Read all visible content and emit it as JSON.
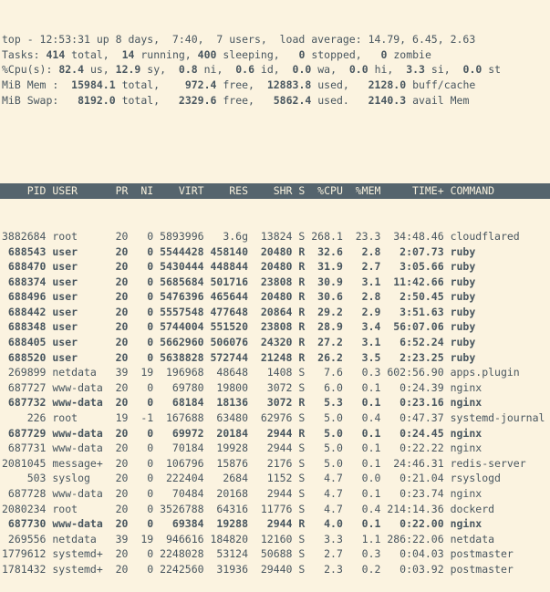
{
  "colors": {
    "background": "#fbf3e0",
    "foreground": "#48565f",
    "header_bar_bg": "#55646d",
    "header_bar_fg": "#f8f1dd"
  },
  "summary": {
    "lines": [
      {
        "name": "uptime-line",
        "segments": [
          {
            "t": "top - 12:53:31 up 8 days,  7:40,  7 users,  load average: 14.79, 6.45, 2.63",
            "b": false
          }
        ]
      },
      {
        "name": "tasks-line",
        "segments": [
          {
            "t": "Tasks: ",
            "b": false
          },
          {
            "t": "414",
            "b": true
          },
          {
            "t": " total,  ",
            "b": false
          },
          {
            "t": "14",
            "b": true
          },
          {
            "t": " running, ",
            "b": false
          },
          {
            "t": "400",
            "b": true
          },
          {
            "t": " sleeping,   ",
            "b": false
          },
          {
            "t": "0",
            "b": true
          },
          {
            "t": " stopped,   ",
            "b": false
          },
          {
            "t": "0",
            "b": true
          },
          {
            "t": " zombie",
            "b": false
          }
        ]
      },
      {
        "name": "cpu-line",
        "segments": [
          {
            "t": "%Cpu(s): ",
            "b": false
          },
          {
            "t": "82.4",
            "b": true
          },
          {
            "t": " us, ",
            "b": false
          },
          {
            "t": "12.9",
            "b": true
          },
          {
            "t": " sy,  ",
            "b": false
          },
          {
            "t": "0.8",
            "b": true
          },
          {
            "t": " ni,  ",
            "b": false
          },
          {
            "t": "0.6",
            "b": true
          },
          {
            "t": " id,  ",
            "b": false
          },
          {
            "t": "0.0",
            "b": true
          },
          {
            "t": " wa,  ",
            "b": false
          },
          {
            "t": "0.0",
            "b": true
          },
          {
            "t": " hi,  ",
            "b": false
          },
          {
            "t": "3.3",
            "b": true
          },
          {
            "t": " si,  ",
            "b": false
          },
          {
            "t": "0.0",
            "b": true
          },
          {
            "t": " st",
            "b": false
          }
        ]
      },
      {
        "name": "mem-line",
        "segments": [
          {
            "t": "MiB Mem :  ",
            "b": false
          },
          {
            "t": "15984.1",
            "b": true
          },
          {
            "t": " total,    ",
            "b": false
          },
          {
            "t": "972.4",
            "b": true
          },
          {
            "t": " free,  ",
            "b": false
          },
          {
            "t": "12883.8",
            "b": true
          },
          {
            "t": " used,   ",
            "b": false
          },
          {
            "t": "2128.0",
            "b": true
          },
          {
            "t": " buff/cache",
            "b": false
          }
        ]
      },
      {
        "name": "swap-line",
        "segments": [
          {
            "t": "MiB Swap:   ",
            "b": false
          },
          {
            "t": "8192.0",
            "b": true
          },
          {
            "t": " total,   ",
            "b": false
          },
          {
            "t": "2329.6",
            "b": true
          },
          {
            "t": " free,   ",
            "b": false
          },
          {
            "t": "5862.4",
            "b": true
          },
          {
            "t": " used.   ",
            "b": false
          },
          {
            "t": "2140.3",
            "b": true
          },
          {
            "t": " avail Mem",
            "b": false
          }
        ]
      }
    ]
  },
  "table": {
    "header_line": "    PID USER      PR  NI    VIRT    RES    SHR S  %CPU  %MEM     TIME+ COMMAND",
    "columns": [
      "PID",
      "USER",
      "PR",
      "NI",
      "VIRT",
      "RES",
      "SHR",
      "S",
      "%CPU",
      "%MEM",
      "TIME+",
      "COMMAND"
    ],
    "rows": [
      {
        "pid": "3882684",
        "user": "root",
        "pr": "20",
        "ni": "0",
        "virt": "5893996",
        "res": "3.6g",
        "shr": "13824",
        "s": "S",
        "cpu": "268.1",
        "mem": "23.3",
        "time": "34:48.46",
        "command": "cloudflared",
        "bold": false
      },
      {
        "pid": "688543",
        "user": "user",
        "pr": "20",
        "ni": "0",
        "virt": "5544428",
        "res": "458140",
        "shr": "20480",
        "s": "R",
        "cpu": "32.6",
        "mem": "2.8",
        "time": "2:07.73",
        "command": "ruby",
        "bold": true
      },
      {
        "pid": "688470",
        "user": "user",
        "pr": "20",
        "ni": "0",
        "virt": "5430444",
        "res": "448844",
        "shr": "20480",
        "s": "R",
        "cpu": "31.9",
        "mem": "2.7",
        "time": "3:05.66",
        "command": "ruby",
        "bold": true
      },
      {
        "pid": "688374",
        "user": "user",
        "pr": "20",
        "ni": "0",
        "virt": "5685684",
        "res": "501716",
        "shr": "23808",
        "s": "R",
        "cpu": "30.9",
        "mem": "3.1",
        "time": "11:42.66",
        "command": "ruby",
        "bold": true
      },
      {
        "pid": "688496",
        "user": "user",
        "pr": "20",
        "ni": "0",
        "virt": "5476396",
        "res": "465644",
        "shr": "20480",
        "s": "R",
        "cpu": "30.6",
        "mem": "2.8",
        "time": "2:50.45",
        "command": "ruby",
        "bold": true
      },
      {
        "pid": "688442",
        "user": "user",
        "pr": "20",
        "ni": "0",
        "virt": "5557548",
        "res": "477648",
        "shr": "20864",
        "s": "R",
        "cpu": "29.2",
        "mem": "2.9",
        "time": "3:51.63",
        "command": "ruby",
        "bold": true
      },
      {
        "pid": "688348",
        "user": "user",
        "pr": "20",
        "ni": "0",
        "virt": "5744004",
        "res": "551520",
        "shr": "23808",
        "s": "R",
        "cpu": "28.9",
        "mem": "3.4",
        "time": "56:07.06",
        "command": "ruby",
        "bold": true
      },
      {
        "pid": "688405",
        "user": "user",
        "pr": "20",
        "ni": "0",
        "virt": "5662960",
        "res": "506076",
        "shr": "24320",
        "s": "R",
        "cpu": "27.2",
        "mem": "3.1",
        "time": "6:52.24",
        "command": "ruby",
        "bold": true
      },
      {
        "pid": "688520",
        "user": "user",
        "pr": "20",
        "ni": "0",
        "virt": "5638828",
        "res": "572744",
        "shr": "21248",
        "s": "R",
        "cpu": "26.2",
        "mem": "3.5",
        "time": "2:23.25",
        "command": "ruby",
        "bold": true
      },
      {
        "pid": "269899",
        "user": "netdata",
        "pr": "39",
        "ni": "19",
        "virt": "196968",
        "res": "48648",
        "shr": "1408",
        "s": "S",
        "cpu": "7.6",
        "mem": "0.3",
        "time": "602:56.90",
        "command": "apps.plugin",
        "bold": false
      },
      {
        "pid": "687727",
        "user": "www-data",
        "pr": "20",
        "ni": "0",
        "virt": "69780",
        "res": "19800",
        "shr": "3072",
        "s": "S",
        "cpu": "6.0",
        "mem": "0.1",
        "time": "0:24.39",
        "command": "nginx",
        "bold": false
      },
      {
        "pid": "687732",
        "user": "www-data",
        "pr": "20",
        "ni": "0",
        "virt": "68184",
        "res": "18136",
        "shr": "3072",
        "s": "R",
        "cpu": "5.3",
        "mem": "0.1",
        "time": "0:23.16",
        "command": "nginx",
        "bold": true
      },
      {
        "pid": "226",
        "user": "root",
        "pr": "19",
        "ni": "-1",
        "virt": "167688",
        "res": "63480",
        "shr": "62976",
        "s": "S",
        "cpu": "5.0",
        "mem": "0.4",
        "time": "0:47.37",
        "command": "systemd-journal",
        "bold": false
      },
      {
        "pid": "687729",
        "user": "www-data",
        "pr": "20",
        "ni": "0",
        "virt": "69972",
        "res": "20184",
        "shr": "2944",
        "s": "R",
        "cpu": "5.0",
        "mem": "0.1",
        "time": "0:24.45",
        "command": "nginx",
        "bold": true
      },
      {
        "pid": "687731",
        "user": "www-data",
        "pr": "20",
        "ni": "0",
        "virt": "70184",
        "res": "19928",
        "shr": "2944",
        "s": "S",
        "cpu": "5.0",
        "mem": "0.1",
        "time": "0:22.22",
        "command": "nginx",
        "bold": false
      },
      {
        "pid": "2081045",
        "user": "message+",
        "pr": "20",
        "ni": "0",
        "virt": "106796",
        "res": "15876",
        "shr": "2176",
        "s": "S",
        "cpu": "5.0",
        "mem": "0.1",
        "time": "24:46.31",
        "command": "redis-server",
        "bold": false
      },
      {
        "pid": "503",
        "user": "syslog",
        "pr": "20",
        "ni": "0",
        "virt": "222404",
        "res": "2684",
        "shr": "1152",
        "s": "S",
        "cpu": "4.7",
        "mem": "0.0",
        "time": "0:21.04",
        "command": "rsyslogd",
        "bold": false
      },
      {
        "pid": "687728",
        "user": "www-data",
        "pr": "20",
        "ni": "0",
        "virt": "70484",
        "res": "20168",
        "shr": "2944",
        "s": "S",
        "cpu": "4.7",
        "mem": "0.1",
        "time": "0:23.74",
        "command": "nginx",
        "bold": false
      },
      {
        "pid": "2080234",
        "user": "root",
        "pr": "20",
        "ni": "0",
        "virt": "3526788",
        "res": "64316",
        "shr": "11776",
        "s": "S",
        "cpu": "4.7",
        "mem": "0.4",
        "time": "214:14.36",
        "command": "dockerd",
        "bold": false
      },
      {
        "pid": "687730",
        "user": "www-data",
        "pr": "20",
        "ni": "0",
        "virt": "69384",
        "res": "19288",
        "shr": "2944",
        "s": "R",
        "cpu": "4.0",
        "mem": "0.1",
        "time": "0:22.00",
        "command": "nginx",
        "bold": true
      },
      {
        "pid": "269556",
        "user": "netdata",
        "pr": "39",
        "ni": "19",
        "virt": "946616",
        "res": "184820",
        "shr": "12160",
        "s": "S",
        "cpu": "3.3",
        "mem": "1.1",
        "time": "286:22.06",
        "command": "netdata",
        "bold": false
      },
      {
        "pid": "1779612",
        "user": "systemd+",
        "pr": "20",
        "ni": "0",
        "virt": "2248028",
        "res": "53124",
        "shr": "50688",
        "s": "S",
        "cpu": "2.7",
        "mem": "0.3",
        "time": "0:04.03",
        "command": "postmaster",
        "bold": false
      },
      {
        "pid": "1781432",
        "user": "systemd+",
        "pr": "20",
        "ni": "0",
        "virt": "2242560",
        "res": "31936",
        "shr": "29440",
        "s": "S",
        "cpu": "2.3",
        "mem": "0.2",
        "time": "0:03.92",
        "command": "postmaster",
        "bold": false
      }
    ]
  }
}
